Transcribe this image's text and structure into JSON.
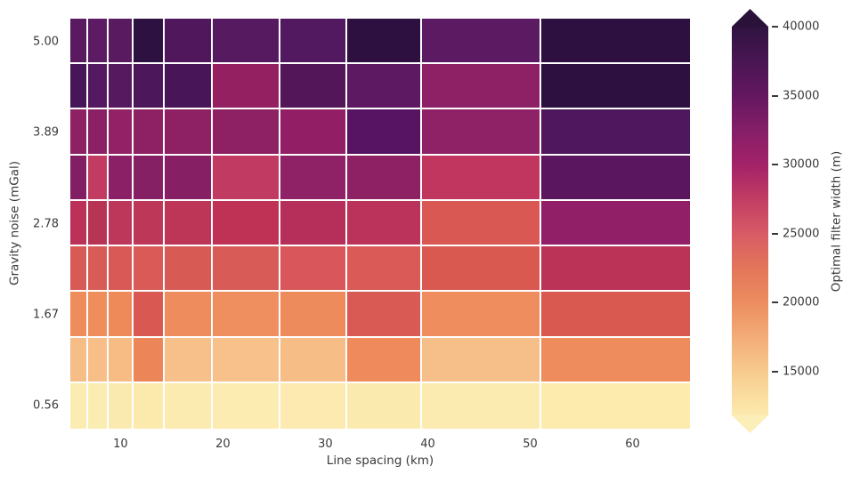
{
  "figure": {
    "background": "#ffffff",
    "text_color": "#3a3a3a"
  },
  "chart_data": {
    "type": "heatmap",
    "title": "",
    "xlabel": "Line spacing (km)",
    "ylabel": "Gravity noise (mGal)",
    "colorbar_label": "Optimal filter width (m)",
    "grid": "white cell edges",
    "legend_position": "colorbar-right",
    "x_categories_km": [
      6,
      8,
      10,
      13,
      17,
      22,
      28,
      36,
      44,
      57
    ],
    "y_categories_mgal": [
      5.0,
      4.44,
      3.89,
      3.33,
      2.78,
      2.22,
      1.67,
      1.11,
      0.56
    ],
    "values_m": [
      [
        35600,
        35300,
        35500,
        40500,
        36300,
        35800,
        35900,
        40500,
        35100,
        40500
      ],
      [
        37300,
        36000,
        35800,
        36800,
        37300,
        31000,
        36400,
        35200,
        31500,
        40500
      ],
      [
        31500,
        31600,
        31100,
        31500,
        31500,
        31500,
        31200,
        35700,
        31400,
        36400
      ],
      [
        32400,
        27200,
        31700,
        32100,
        32000,
        27300,
        31400,
        31500,
        27200,
        35400
      ],
      [
        27800,
        27900,
        27700,
        27700,
        27700,
        27600,
        28100,
        27800,
        24900,
        31400
      ],
      [
        24900,
        24900,
        24900,
        24900,
        24900,
        24900,
        24900,
        24800,
        24900,
        27700
      ],
      [
        20300,
        20200,
        20400,
        24900,
        20300,
        20100,
        20300,
        24800,
        20200,
        25000
      ],
      [
        16100,
        16000,
        16200,
        20600,
        15900,
        15800,
        16100,
        20300,
        15900,
        20100
      ],
      [
        11600,
        11600,
        11700,
        11800,
        11600,
        11600,
        11700,
        11700,
        11600,
        11700
      ]
    ],
    "cell_colors": [
      [
        "#5a1a60",
        "#5c1b63",
        "#591a60",
        "#2d1140",
        "#50175d",
        "#561a61",
        "#531960",
        "#2e1040",
        "#5c1a63",
        "#2d1040"
      ],
      [
        "#471658",
        "#541960",
        "#56195f",
        "#4c175b",
        "#471558",
        "#942062",
        "#521659",
        "#5d1a62",
        "#8e2166",
        "#2d1040"
      ],
      [
        "#8e2064",
        "#8c2064",
        "#932166",
        "#8e2064",
        "#8e2064",
        "#8e2064",
        "#921f66",
        "#571463",
        "#8f2166",
        "#4f175d"
      ],
      [
        "#821f64",
        "#c23b61",
        "#8b2066",
        "#862065",
        "#871f65",
        "#c13a62",
        "#8f2166",
        "#8e2064",
        "#c0365f",
        "#5a1760"
      ],
      [
        "#bb3157",
        "#b83455",
        "#bc3759",
        "#bd3759",
        "#bd3557",
        "#bf3256",
        "#b62f5b",
        "#bb335a",
        "#d95853",
        "#901f67"
      ],
      [
        "#d85a56",
        "#d95b56",
        "#d85955",
        "#d95a56",
        "#d85a55",
        "#d95b57",
        "#d9575a",
        "#da5a57",
        "#d95850",
        "#bc3358"
      ],
      [
        "#ee8c5c",
        "#ef8d5c",
        "#ee8a5a",
        "#d95852",
        "#ee8c5e",
        "#ef8f60",
        "#ee8b5c",
        "#d95954",
        "#ef8d5f",
        "#d9584f"
      ],
      [
        "#f6bd86",
        "#f7be88",
        "#f6bc84",
        "#ec8659",
        "#f7bf89",
        "#f8c08b",
        "#f6bd87",
        "#ee8a5c",
        "#f6bf89",
        "#ef8c5d"
      ],
      [
        "#fbecb2",
        "#fbecb2",
        "#fbeab0",
        "#fce9ac",
        "#fcebb0",
        "#fcecb2",
        "#fceab0",
        "#fbeaae",
        "#fcebb0",
        "#fcebad"
      ]
    ],
    "x_axis": {
      "ticks": [
        10,
        20,
        30,
        40,
        50,
        60
      ],
      "range_km": [
        5.1,
        65.6
      ]
    },
    "y_axis": {
      "ticks": [
        {
          "label": "5.00",
          "row": 0
        },
        {
          "label": "3.89",
          "row": 2
        },
        {
          "label": "2.78",
          "row": 4
        },
        {
          "label": "1.67",
          "row": 6
        },
        {
          "label": "0.56",
          "row": 8
        }
      ]
    },
    "colorbar": {
      "vmin": 11850,
      "vmax": 40000,
      "extend": "both",
      "ticks": [
        40000,
        35000,
        30000,
        25000,
        20000,
        15000
      ],
      "arrow_top_color": "#2a1139",
      "arrow_bottom_color": "#fceeb8",
      "gradient": [
        {
          "at": 0.0,
          "color": "#2f1340"
        },
        {
          "at": 0.089,
          "color": "#491653"
        },
        {
          "at": 0.178,
          "color": "#641760"
        },
        {
          "at": 0.266,
          "color": "#851e68"
        },
        {
          "at": 0.355,
          "color": "#a32268"
        },
        {
          "at": 0.444,
          "color": "#c23d63"
        },
        {
          "at": 0.533,
          "color": "#d75b66"
        },
        {
          "at": 0.622,
          "color": "#e37659"
        },
        {
          "at": 0.711,
          "color": "#ec8d60"
        },
        {
          "at": 0.799,
          "color": "#f3ac77"
        },
        {
          "at": 0.888,
          "color": "#f7cb8e"
        },
        {
          "at": 0.959,
          "color": "#fbdfa2"
        },
        {
          "at": 1.0,
          "color": "#fce9ae"
        }
      ]
    }
  }
}
